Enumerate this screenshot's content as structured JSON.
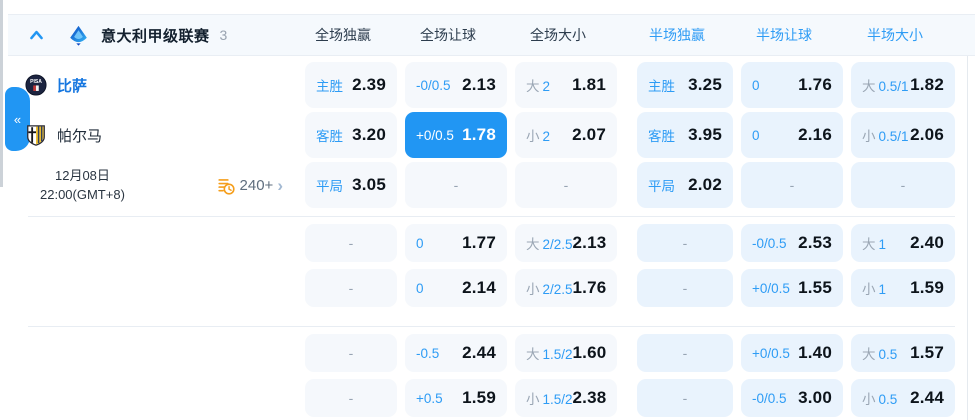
{
  "colors": {
    "accent": "#2196f3",
    "label_blue": "#2e9cf5",
    "ft_cell_bg": "#f5f8fc",
    "ht_cell_bg": "#e9f3fd",
    "value_text": "#0d141b",
    "coin_orange": "#f59e1b"
  },
  "header": {
    "league": "意大利甲级联赛",
    "count": "3",
    "columns": [
      {
        "label": "全场独赢",
        "type": "ft"
      },
      {
        "label": "全场让球",
        "type": "ft"
      },
      {
        "label": "全场大小",
        "type": "ft"
      },
      {
        "label": "半场独赢",
        "type": "ht"
      },
      {
        "label": "半场让球",
        "type": "ht"
      },
      {
        "label": "半场大小",
        "type": "ht"
      }
    ]
  },
  "match": {
    "home_team": "比萨",
    "away_team": "帕尔马",
    "date_line1": "12月08日",
    "date_line2": "22:00(GMT+8)",
    "more_markets": "240+"
  },
  "misc": {
    "dash": "-",
    "collapse": "«",
    "more_chevron": "›"
  },
  "odds_sections": [
    {
      "rows": [
        [
          {
            "t": "ft",
            "lbl": "主胜",
            "val": "2.39"
          },
          {
            "t": "ft",
            "lbl": "-0/0.5",
            "val": "2.13"
          },
          {
            "t": "ft",
            "pfx": "大",
            "lbl": "2",
            "val": "1.81"
          },
          {
            "t": "ht",
            "lbl": "主胜",
            "val": "3.25"
          },
          {
            "t": "ht",
            "lbl": "0",
            "val": "1.76"
          },
          {
            "t": "ht",
            "pfx": "大",
            "lbl": "0.5/1",
            "val": "1.82"
          }
        ],
        [
          {
            "t": "ft",
            "lbl": "客胜",
            "val": "3.20"
          },
          {
            "t": "ft",
            "sel": true,
            "lbl": "+0/0.5",
            "val": "1.78"
          },
          {
            "t": "ft",
            "pfx": "小",
            "lbl": "2",
            "val": "2.07"
          },
          {
            "t": "ht",
            "lbl": "客胜",
            "val": "3.95"
          },
          {
            "t": "ht",
            "lbl": "0",
            "val": "2.16"
          },
          {
            "t": "ht",
            "pfx": "小",
            "lbl": "0.5/1",
            "val": "2.06"
          }
        ],
        [
          {
            "t": "ft",
            "lbl": "平局",
            "val": "3.05"
          },
          {
            "t": "ft",
            "dash": true
          },
          {
            "t": "ft",
            "dash": true
          },
          {
            "t": "ht",
            "lbl": "平局",
            "val": "2.02"
          },
          {
            "t": "ht",
            "dash": true
          },
          {
            "t": "ht",
            "dash": true
          }
        ]
      ]
    },
    {
      "rows": [
        [
          {
            "t": "ft",
            "dash": true
          },
          {
            "t": "ft",
            "lbl": "0",
            "val": "1.77"
          },
          {
            "t": "ft",
            "pfx": "大",
            "lbl": "2/2.5",
            "val": "2.13"
          },
          {
            "t": "ht",
            "dash": true
          },
          {
            "t": "ht",
            "lbl": "-0/0.5",
            "val": "2.53"
          },
          {
            "t": "ht",
            "pfx": "大",
            "lbl": "1",
            "val": "2.40"
          }
        ],
        [
          {
            "t": "ft",
            "dash": true
          },
          {
            "t": "ft",
            "lbl": "0",
            "val": "2.14"
          },
          {
            "t": "ft",
            "pfx": "小",
            "lbl": "2/2.5",
            "val": "1.76"
          },
          {
            "t": "ht",
            "dash": true
          },
          {
            "t": "ht",
            "lbl": "+0/0.5",
            "val": "1.55"
          },
          {
            "t": "ht",
            "pfx": "小",
            "lbl": "1",
            "val": "1.59"
          }
        ]
      ]
    },
    {
      "rows": [
        [
          {
            "t": "ft",
            "dash": true
          },
          {
            "t": "ft",
            "lbl": "-0.5",
            "val": "2.44"
          },
          {
            "t": "ft",
            "pfx": "大",
            "lbl": "1.5/2",
            "val": "1.60"
          },
          {
            "t": "ht",
            "dash": true
          },
          {
            "t": "ht",
            "lbl": "+0/0.5",
            "val": "1.40"
          },
          {
            "t": "ht",
            "pfx": "大",
            "lbl": "0.5",
            "val": "1.57"
          }
        ],
        [
          {
            "t": "ft",
            "dash": true
          },
          {
            "t": "ft",
            "lbl": "+0.5",
            "val": "1.59"
          },
          {
            "t": "ft",
            "pfx": "小",
            "lbl": "1.5/2",
            "val": "2.38"
          },
          {
            "t": "ht",
            "dash": true
          },
          {
            "t": "ht",
            "lbl": "-0/0.5",
            "val": "3.00"
          },
          {
            "t": "ht",
            "pfx": "小",
            "lbl": "0.5",
            "val": "2.44"
          }
        ]
      ]
    }
  ]
}
